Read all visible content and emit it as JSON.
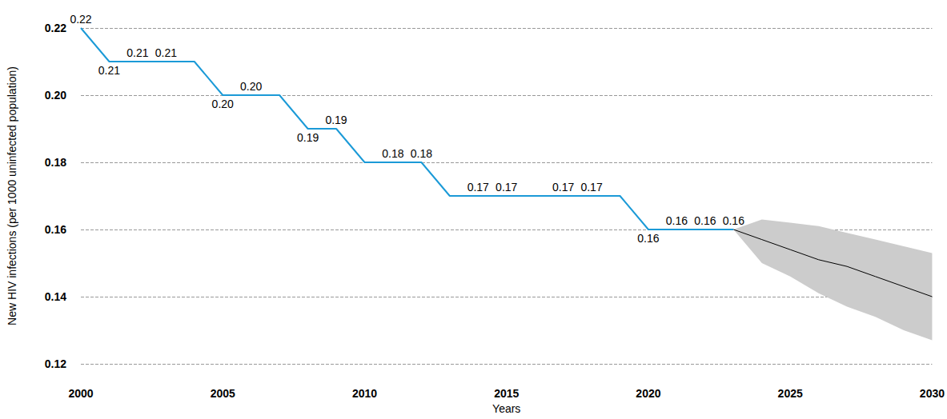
{
  "chart_data": {
    "type": "line",
    "x_label": "Years",
    "y_label": "New HIV infections (per 1000 uninfected population)",
    "x": [
      2000,
      2001,
      2002,
      2003,
      2004,
      2005,
      2006,
      2007,
      2008,
      2009,
      2010,
      2011,
      2012,
      2013,
      2014,
      2015,
      2016,
      2017,
      2018,
      2019,
      2020,
      2021,
      2022,
      2023
    ],
    "values": [
      0.22,
      0.21,
      0.21,
      0.21,
      0.21,
      0.2,
      0.2,
      0.2,
      0.19,
      0.19,
      0.18,
      0.18,
      0.18,
      0.17,
      0.17,
      0.17,
      0.17,
      0.17,
      0.17,
      0.17,
      0.16,
      0.16,
      0.16,
      0.16
    ],
    "value_labels": [
      "0.22",
      "0.21",
      "0.21",
      "0.21",
      null,
      "0.20",
      "0.20",
      null,
      "0.19",
      "0.19",
      null,
      "0.18",
      "0.18",
      null,
      "0.17",
      "0.17",
      null,
      "0.17",
      "0.17",
      null,
      "0.16",
      "0.16",
      "0.16",
      "0.16"
    ],
    "color": "#1b9ad7",
    "data_labels": true,
    "projection": {
      "x": [
        2023,
        2024,
        2025,
        2026,
        2027,
        2028,
        2029,
        2030
      ],
      "values": [
        0.16,
        0.157,
        0.154,
        0.151,
        0.149,
        0.146,
        0.143,
        0.14
      ],
      "upper": [
        0.16,
        0.163,
        0.162,
        0.161,
        0.159,
        0.157,
        0.155,
        0.153
      ],
      "lower": [
        0.16,
        0.15,
        0.146,
        0.141,
        0.137,
        0.134,
        0.13,
        0.127
      ],
      "color": "#000000",
      "band_color": "#cccccc"
    },
    "xlim": [
      2000,
      2030
    ],
    "xticks": [
      2000,
      2005,
      2010,
      2015,
      2020,
      2025,
      2030
    ],
    "ylim": [
      0.12,
      0.22
    ],
    "yticks": [
      0.12,
      0.14,
      0.16,
      0.18,
      {
        "value": 0.2,
        "label": "0.20"
      },
      0.22
    ],
    "grid": true
  }
}
